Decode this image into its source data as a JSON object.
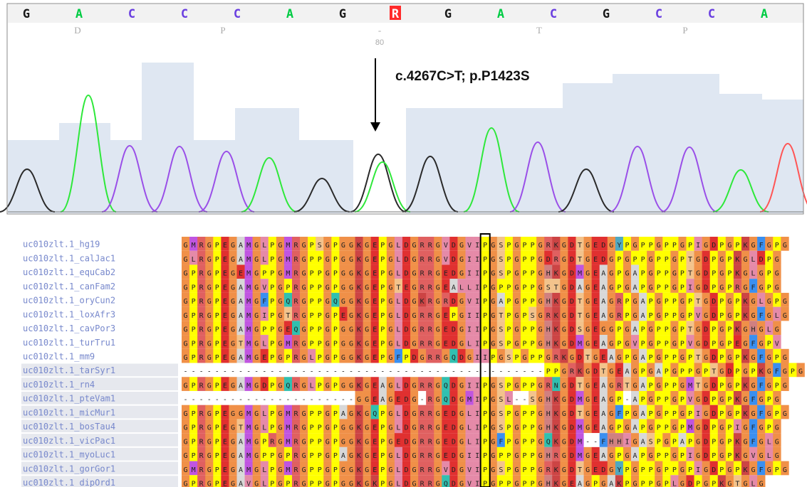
{
  "chromatogram": {
    "bases": [
      "G",
      "A",
      "C",
      "C",
      "C",
      "A",
      "G",
      "R",
      "G",
      "A",
      "C",
      "G",
      "C",
      "C",
      "A",
      "T"
    ],
    "amino_acids": [
      "D",
      "P",
      "-",
      "T",
      "P"
    ],
    "position_label": "80",
    "annotation": "c.4267C>T; p.P1423S"
  },
  "alignment": {
    "sequence_names": [
      "uc010zlt.1_hg19",
      "uc010zlt.1_calJac1",
      "uc010zlt.1_equCab2",
      "uc010zlt.1_canFam2",
      "uc010zlt.1_oryCun2",
      "uc010zlt.1_loxAfr3",
      "uc010zlt.1_cavPor3",
      "uc010zlt.1_turTru1",
      "uc010zlt.1_mm9",
      "uc010zlt.1_tarSyr1",
      "uc010zlt.1_rn4",
      "uc010zlt.1_pteVam1",
      "uc010zlt.1_micMur1",
      "uc010zlt.1_bosTau4",
      "uc010zlt.1_vicPac1",
      "uc010zlt.1_myoLuc1",
      "uc010zlt.1_gorGor1",
      "uc010zlt.1_dipOrd1"
    ],
    "sequences": [
      "GMRGPEGAMGLPGMRGPSGPGGKGEPGLDGRRGVDGVIPGSPGPPGRKGDTGEDGYPGPPGPPGPIGDPGPKGFGPG",
      "GLRGPEGAMGLPGMRGPPGPGGKGEPGLDGRRGVDGIIPGSPGPPGDRGDTGEDGPGPPGPPGPTGDPGPKGLDPG",
      "GPRGPEGEMGPPGMRGPPGPGGKGEPGLDGRRGEDGIIPGSPGPPGHKGDMGEAGPGAPGPPGPTGDPGPKGLGPG",
      "GPRGPEGAMGVPGPRGPPGPGGKGEPGTEGRRGEALLIPGPPGPPGSTGDAGEAGPGAPGPPGPIGDPGPRGFGPG",
      "GPRGPEGAMGFPGQRGPPGQGGKGEPGLDGKRGRDGVIPGAPGPPGHKGDTGEAGRPGAPGPPGPTGDPGPKGLGPG",
      "GPRGPEGAMGIPGTRGPPGPEGKGEPGLDGRRGEPGIIPGTPGPSGRKGDTGEAGRPGAPGPPGPVGDPGPKGFGLG",
      "GPRGPEGAMGPPGEQGPPGPGGKGEPGLDGRRGEDGIIPGSPGPPGHKGDSGEGGPGAPGPPGPTGDPGPKGHGLG",
      "GPRGPEGTMGLPGMRGPPGPGGKGEPGLDGRRGEDGLIPGSPGPPGHKGDMGEAGPGVPGPPGPVGDPGPEGFGPV",
      "GPRGPEGAMGEPGPRGLPGPGGKGEPGFPDGRRGQDGIIPGSPGPPGRKGDTGEAGPGAPGPPGPTGDPGPKGFGPG",
      "----------------------------------------------PPGRKGDTGEAGPGAPGPPGPTGDPGPKGFGPG",
      "GPRGPEGAMGDPGQRGLPGPGGKGEAGLDGRRGQDGIIPGSPGPPGRNGDTGEAGRTGAPGPPGMTGDPGPKGFGPG",
      "----------------------GGEAGEDG-RGQDGMIPGSL--SGHKGDMGEAGP-APGPPGPVGDPGPKGFGPG",
      "GPRGPEGGMGLPGMRGPPGPAGKGQPGLDGRRGEDGLIPGSPGPPGHKGDTGEAGFPGAPGPPGPIGDPGPKGFGPG",
      "GPRGPEGTMGLPGMRGPPGPGGKGEPGLDGRRGEDGLIPGSPGPPGHKGDMGEAGPGAPGPPGPMGDPGPIGFGPG",
      "GPRGPEGAMGPRGMRGPPGPGGKGEPGEDGRRGEDGLIPGFPGPPGQKGDM--FHHIGASPGPAPGDPGPKGFGLG",
      "GPRGPEGAMGPPGPRGPPGPAGKGEPGLDGRRGEDGIIPGPPGPPGHRGDMGEAGPGAPGPPGPIGDPGPKGVGLG",
      "GMRGPEGAMGLPGMRGPPGPGGKGEPGLDGRRGVDGVIPGSPGPPGRKGDTGEDGYPGPPGPPGPIGDPGPKGFGPG",
      "GPRGPEGAVGLPGPRGPPGPGGKGKPGLDGRRGQDGVIPGPPGPPGHKGEAGPGAKPGPPGPLGDPGPKGTGLG"
    ],
    "highlight_column": 38
  },
  "colors": {
    "A": "#00cc44",
    "C": "#6a3fe0",
    "G": "#1a1a1a",
    "T": "#ff4444",
    "R": "#ffffff",
    "R_bg": "#ff2a2a",
    "chrom_A": "#2ee83a",
    "chrom_C": "#9a4fe8",
    "chrom_G": "#2a2a2a",
    "chrom_T": "#ff5555",
    "quality": "#dfe7f2",
    "name": "#7788cc",
    "name_alt_bg": "#e6e8ee",
    "aa": {
      "G": "#f09048",
      "P": "#ffff00",
      "D": "#e03030",
      "E": "#e03030",
      "K": "#cc4444",
      "R": "#e06060",
      "H": "#d08080",
      "A": "#d8d8d8",
      "M": "#c055e0",
      "L": "#e58aa8",
      "I": "#e58aa8",
      "V": "#e58aa8",
      "F": "#3a8ff0",
      "Y": "#50a8c0",
      "W": "#3a8ff0",
      "S": "#f3c38c",
      "T": "#f3c38c",
      "N": "#30c0b0",
      "Q": "#30c0b0",
      "C": "#f0c040",
      "-": "#ffffff"
    }
  }
}
